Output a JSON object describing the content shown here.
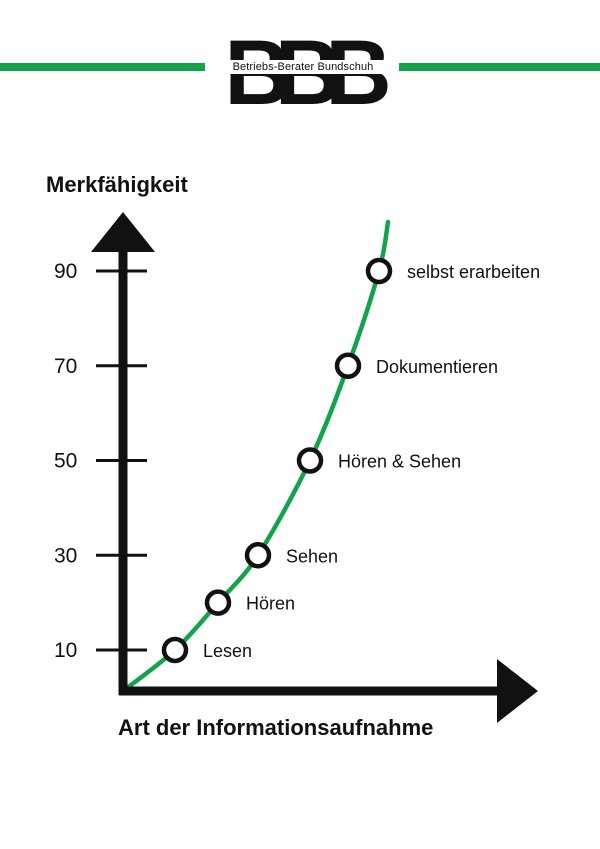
{
  "logo": {
    "letters": "BBB",
    "name": "Betriebs-Berater Bundschuh",
    "accent": "#12a44a"
  },
  "chart_data": {
    "type": "line",
    "ylabel": "Merkfähigkeit",
    "xlabel": "Art der Informationsaufnahme",
    "yticks": [
      10,
      30,
      50,
      70,
      90
    ],
    "ylim": [
      0,
      100
    ],
    "grid": false,
    "legend": "none",
    "series": [
      {
        "color": "#12a44a",
        "points": [
          {
            "label": "Lesen",
            "y": 10
          },
          {
            "label": "Hören",
            "y": 20
          },
          {
            "label": "Sehen",
            "y": 30
          },
          {
            "label": "Hören & Sehen",
            "y": 50
          },
          {
            "label": "Dokumentieren",
            "y": 70
          },
          {
            "label": "selbst erarbeiten",
            "y": 90
          }
        ]
      }
    ]
  }
}
